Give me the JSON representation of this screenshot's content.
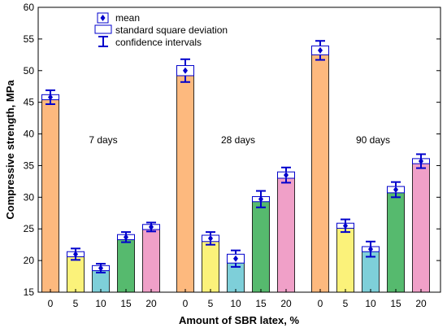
{
  "chart_data": {
    "type": "bar",
    "xlabel": "Amount of SBR latex, %",
    "ylabel": "Compressive strength, MPa",
    "ylim": [
      15,
      60
    ],
    "yticks": [
      15,
      20,
      25,
      30,
      35,
      40,
      45,
      50,
      55,
      60
    ],
    "grid": false,
    "legend_position": "top-center",
    "legend": {
      "mean": "mean",
      "sd": "standard square deviation",
      "ci": "confidence intervals"
    },
    "colors": {
      "0": "#FDB97E",
      "5": "#FBF27A",
      "10": "#7ECFD9",
      "15": "#56BA6E",
      "20": "#F0A0C8",
      "marker": "#0000CC"
    },
    "groups": [
      {
        "label": "7 days",
        "categories": [
          "0",
          "5",
          "10",
          "15",
          "20"
        ],
        "values": [
          45.8,
          21.0,
          18.8,
          23.7,
          25.3
        ],
        "sd_upper": [
          46.2,
          21.4,
          19.2,
          24.1,
          25.7
        ],
        "sd_lower": [
          45.4,
          20.6,
          18.4,
          23.3,
          24.9
        ],
        "ci_upper": [
          46.9,
          21.9,
          19.5,
          24.5,
          26.0
        ],
        "ci_lower": [
          44.7,
          20.1,
          18.1,
          22.9,
          24.6
        ]
      },
      {
        "label": "28 days",
        "categories": [
          "0",
          "5",
          "10",
          "15",
          "20"
        ],
        "values": [
          50.0,
          23.5,
          20.3,
          29.7,
          33.5
        ],
        "sd_upper": [
          50.8,
          24.0,
          21.0,
          30.1,
          34.0
        ],
        "sd_lower": [
          49.2,
          23.0,
          19.6,
          29.3,
          33.0
        ],
        "ci_upper": [
          51.8,
          24.5,
          21.6,
          31.0,
          34.7
        ],
        "ci_lower": [
          48.2,
          22.5,
          19.0,
          28.4,
          32.3
        ]
      },
      {
        "label": "90 days",
        "categories": [
          "0",
          "5",
          "10",
          "15",
          "20"
        ],
        "values": [
          53.2,
          25.5,
          21.8,
          31.2,
          35.7
        ],
        "sd_upper": [
          53.9,
          25.9,
          22.2,
          31.7,
          36.1
        ],
        "sd_lower": [
          52.5,
          25.1,
          21.4,
          30.7,
          35.3
        ],
        "ci_upper": [
          54.7,
          26.5,
          23.0,
          32.4,
          36.8
        ],
        "ci_lower": [
          51.7,
          24.5,
          20.6,
          30.0,
          34.6
        ]
      }
    ]
  }
}
